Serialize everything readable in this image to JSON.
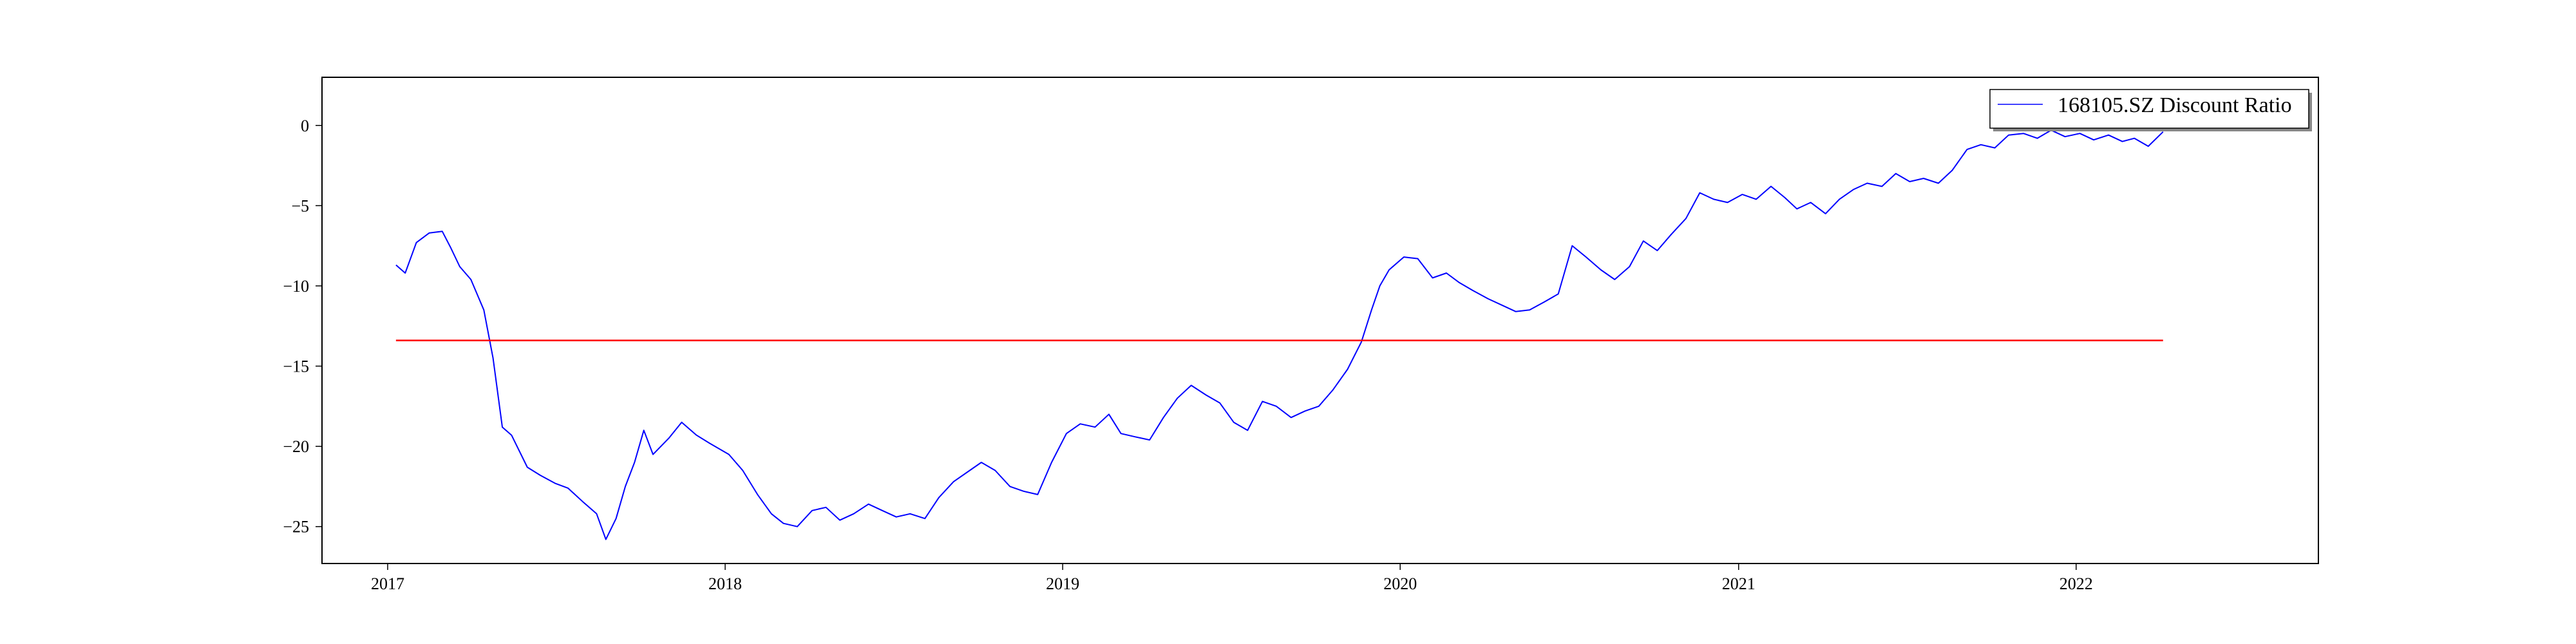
{
  "chart_data": {
    "type": "line",
    "title": "",
    "xlabel": "",
    "ylabel": "",
    "xlim": [
      "2016-10-22",
      "2022-09-20"
    ],
    "ylim": [
      -27.3,
      3.0
    ],
    "x_ticks": [
      "2017-01-01",
      "2018-01-01",
      "2019-01-01",
      "2020-01-01",
      "2021-01-01",
      "2022-01-01"
    ],
    "x_tick_labels": [
      "2017",
      "2018",
      "2019",
      "2020",
      "2021",
      "2022"
    ],
    "y_ticks": [
      0,
      -5,
      -10,
      -15,
      -20,
      -25
    ],
    "y_tick_labels": [
      "0",
      "−5",
      "−10",
      "−15",
      "−20",
      "−25"
    ],
    "grid": false,
    "legend": {
      "placement": "top-right",
      "entries": [
        "168105.SZ Discount Ratio"
      ]
    },
    "colors": {
      "series": "#0000ff",
      "reference": "#ff0000"
    },
    "series": [
      {
        "name": "168105.SZ Discount Ratio",
        "points": [
          [
            "2017-01-10",
            -8.7
          ],
          [
            "2017-01-20",
            -9.2
          ],
          [
            "2017-02-01",
            -7.3
          ],
          [
            "2017-02-15",
            -6.7
          ],
          [
            "2017-03-01",
            -6.6
          ],
          [
            "2017-03-10",
            -7.6
          ],
          [
            "2017-03-20",
            -8.8
          ],
          [
            "2017-04-01",
            -9.6
          ],
          [
            "2017-04-15",
            -11.5
          ],
          [
            "2017-04-25",
            -14.5
          ],
          [
            "2017-05-05",
            -18.8
          ],
          [
            "2017-05-15",
            -19.3
          ],
          [
            "2017-06-01",
            -21.3
          ],
          [
            "2017-06-15",
            -21.8
          ],
          [
            "2017-07-01",
            -22.3
          ],
          [
            "2017-07-15",
            -22.6
          ],
          [
            "2017-08-01",
            -23.5
          ],
          [
            "2017-08-15",
            -24.2
          ],
          [
            "2017-08-25",
            -25.8
          ],
          [
            "2017-09-05",
            -24.5
          ],
          [
            "2017-09-15",
            -22.5
          ],
          [
            "2017-09-25",
            -21.0
          ],
          [
            "2017-10-05",
            -19.0
          ],
          [
            "2017-10-15",
            -20.5
          ],
          [
            "2017-11-01",
            -19.5
          ],
          [
            "2017-11-15",
            -18.5
          ],
          [
            "2017-12-01",
            -19.3
          ],
          [
            "2017-12-15",
            -19.8
          ],
          [
            "2018-01-05",
            -20.5
          ],
          [
            "2018-01-20",
            -21.5
          ],
          [
            "2018-02-05",
            -23.0
          ],
          [
            "2018-02-20",
            -24.2
          ],
          [
            "2018-03-05",
            -24.8
          ],
          [
            "2018-03-20",
            -25.0
          ],
          [
            "2018-04-05",
            -24.0
          ],
          [
            "2018-04-20",
            -23.8
          ],
          [
            "2018-05-05",
            -24.6
          ],
          [
            "2018-05-20",
            -24.2
          ],
          [
            "2018-06-05",
            -23.6
          ],
          [
            "2018-06-20",
            -24.0
          ],
          [
            "2018-07-05",
            -24.4
          ],
          [
            "2018-07-20",
            -24.2
          ],
          [
            "2018-08-05",
            -24.5
          ],
          [
            "2018-08-20",
            -23.2
          ],
          [
            "2018-09-05",
            -22.2
          ],
          [
            "2018-09-20",
            -21.6
          ],
          [
            "2018-10-05",
            -21.0
          ],
          [
            "2018-10-20",
            -21.5
          ],
          [
            "2018-11-05",
            -22.5
          ],
          [
            "2018-11-20",
            -22.8
          ],
          [
            "2018-12-05",
            -23.0
          ],
          [
            "2018-12-20",
            -21.0
          ],
          [
            "2019-01-05",
            -19.2
          ],
          [
            "2019-01-20",
            -18.6
          ],
          [
            "2019-02-05",
            -18.8
          ],
          [
            "2019-02-20",
            -18.0
          ],
          [
            "2019-03-05",
            -19.2
          ],
          [
            "2019-03-20",
            -19.4
          ],
          [
            "2019-04-05",
            -19.6
          ],
          [
            "2019-04-20",
            -18.2
          ],
          [
            "2019-05-05",
            -17.0
          ],
          [
            "2019-05-20",
            -16.2
          ],
          [
            "2019-06-05",
            -16.8
          ],
          [
            "2019-06-20",
            -17.3
          ],
          [
            "2019-07-05",
            -18.5
          ],
          [
            "2019-07-20",
            -19.0
          ],
          [
            "2019-08-05",
            -17.2
          ],
          [
            "2019-08-20",
            -17.5
          ],
          [
            "2019-09-05",
            -18.2
          ],
          [
            "2019-09-20",
            -17.8
          ],
          [
            "2019-10-05",
            -17.5
          ],
          [
            "2019-10-20",
            -16.5
          ],
          [
            "2019-11-05",
            -15.2
          ],
          [
            "2019-11-20",
            -13.5
          ],
          [
            "2019-12-01",
            -11.5
          ],
          [
            "2019-12-10",
            -10.0
          ],
          [
            "2019-12-20",
            -9.0
          ],
          [
            "2020-01-05",
            -8.2
          ],
          [
            "2020-01-20",
            -8.3
          ],
          [
            "2020-02-05",
            -9.5
          ],
          [
            "2020-02-20",
            -9.2
          ],
          [
            "2020-03-05",
            -9.8
          ],
          [
            "2020-03-20",
            -10.3
          ],
          [
            "2020-04-05",
            -10.8
          ],
          [
            "2020-04-20",
            -11.2
          ],
          [
            "2020-05-05",
            -11.6
          ],
          [
            "2020-05-20",
            -11.5
          ],
          [
            "2020-06-05",
            -11.0
          ],
          [
            "2020-06-20",
            -10.5
          ],
          [
            "2020-07-05",
            -7.5
          ],
          [
            "2020-07-20",
            -8.2
          ],
          [
            "2020-08-05",
            -9.0
          ],
          [
            "2020-08-20",
            -9.6
          ],
          [
            "2020-09-05",
            -8.8
          ],
          [
            "2020-09-20",
            -7.2
          ],
          [
            "2020-10-05",
            -7.8
          ],
          [
            "2020-10-20",
            -6.8
          ],
          [
            "2020-11-05",
            -5.8
          ],
          [
            "2020-11-20",
            -4.2
          ],
          [
            "2020-12-05",
            -4.6
          ],
          [
            "2020-12-20",
            -4.8
          ],
          [
            "2021-01-05",
            -4.3
          ],
          [
            "2021-01-20",
            -4.6
          ],
          [
            "2021-02-05",
            -3.8
          ],
          [
            "2021-02-20",
            -4.5
          ],
          [
            "2021-03-05",
            -5.2
          ],
          [
            "2021-03-20",
            -4.8
          ],
          [
            "2021-04-05",
            -5.5
          ],
          [
            "2021-04-20",
            -4.6
          ],
          [
            "2021-05-05",
            -4.0
          ],
          [
            "2021-05-20",
            -3.6
          ],
          [
            "2021-06-05",
            -3.8
          ],
          [
            "2021-06-20",
            -3.0
          ],
          [
            "2021-07-05",
            -3.5
          ],
          [
            "2021-07-20",
            -3.3
          ],
          [
            "2021-08-05",
            -3.6
          ],
          [
            "2021-08-20",
            -2.8
          ],
          [
            "2021-09-05",
            -1.5
          ],
          [
            "2021-09-20",
            -1.2
          ],
          [
            "2021-10-05",
            -1.4
          ],
          [
            "2021-10-20",
            -0.6
          ],
          [
            "2021-11-05",
            -0.5
          ],
          [
            "2021-11-20",
            -0.8
          ],
          [
            "2021-12-05",
            -0.3
          ],
          [
            "2021-12-20",
            -0.7
          ],
          [
            "2022-01-05",
            -0.5
          ],
          [
            "2022-01-20",
            -0.9
          ],
          [
            "2022-02-05",
            -0.6
          ],
          [
            "2022-02-20",
            -1.0
          ],
          [
            "2022-03-05",
            -0.8
          ],
          [
            "2022-03-20",
            -1.3
          ],
          [
            "2022-04-05",
            -0.4
          ]
        ]
      },
      {
        "name": "",
        "kind": "constant",
        "points": [
          [
            "2017-01-10",
            -13.4
          ],
          [
            "2022-04-05",
            -13.4
          ]
        ]
      }
    ]
  }
}
